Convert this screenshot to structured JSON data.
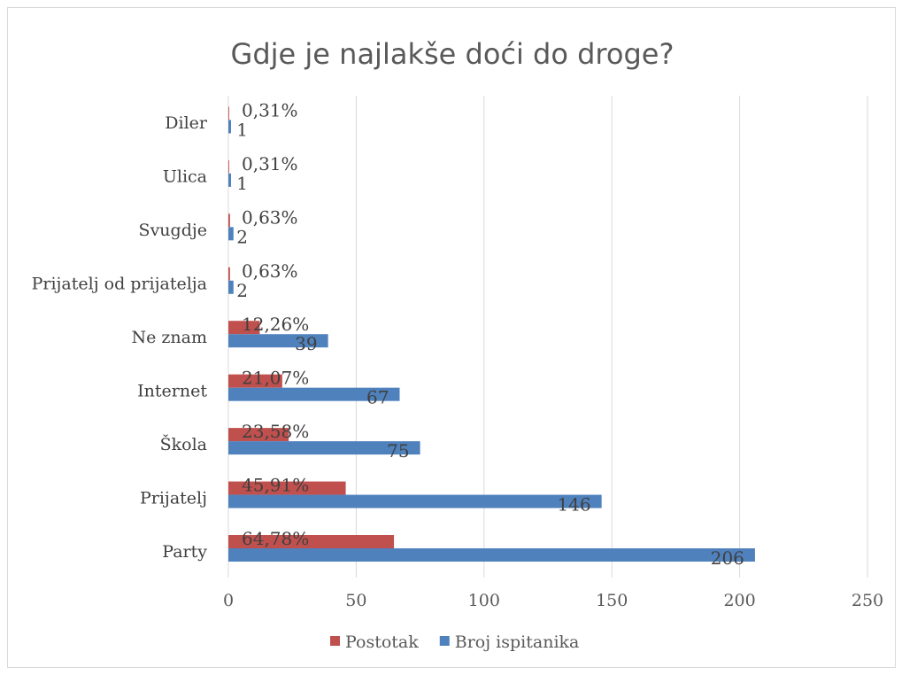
{
  "chart_data": {
    "type": "bar",
    "orientation": "horizontal",
    "title": "Gdje je najlakše doći do droge?",
    "categories": [
      "Party",
      "Prijatelj",
      "Škola",
      "Internet",
      "Ne znam",
      "Prijatelj od prijatelja",
      "Svugdje",
      "Ulica",
      "Diler"
    ],
    "series": [
      {
        "name": "Postotak",
        "color": "#c0504d",
        "values": [
          64.78,
          45.91,
          23.58,
          21.07,
          12.26,
          0.63,
          0.63,
          0.31,
          0.31
        ],
        "data_labels": [
          "64,78%",
          "45,91%",
          "23,58%",
          "21,07%",
          "12,26%",
          "0,63%",
          "0,63%",
          "0,31%",
          "0,31%"
        ]
      },
      {
        "name": "Broj ispitanika",
        "color": "#4f81bd",
        "values": [
          206,
          146,
          75,
          67,
          39,
          2,
          2,
          1,
          1
        ],
        "data_labels": [
          "206",
          "146",
          "75",
          "67",
          "39",
          "2",
          "2",
          "1",
          "1"
        ]
      }
    ],
    "xlim": [
      0,
      250
    ],
    "xticks": [
      "0",
      "50",
      "100",
      "150",
      "200",
      "250"
    ],
    "grid": true,
    "legend_position": "bottom"
  }
}
